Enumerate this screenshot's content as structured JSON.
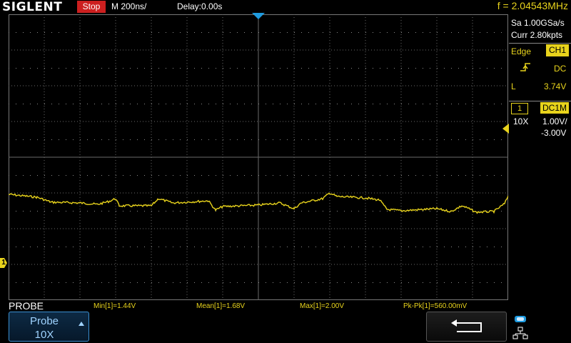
{
  "header": {
    "brand": "SIGLENT",
    "run_status": "Stop",
    "timebase": "M 200ns/",
    "delay": "Delay:0.00s",
    "frequency": "f = 2.04543MHz"
  },
  "acquisition": {
    "sample_rate": "Sa 1.00GSa/s",
    "current_points": "Curr 2.80kpts"
  },
  "trigger": {
    "type": "Edge",
    "source": "CH1",
    "coupling": "DC",
    "mode": "L",
    "level": "3.74V",
    "slope_icon": "rising-edge-icon"
  },
  "channel1": {
    "number": "1",
    "coupling": "DC1M",
    "probe": "10X",
    "scale": "1.00V/",
    "offset": "-3.00V",
    "marker_label": "1",
    "color": "#e8d31c"
  },
  "measurements": {
    "menu_title": "PROBE",
    "min": "Min[1]=1.44V",
    "mean": "Mean[1]=1.68V",
    "max": "Max[1]=2.00V",
    "pkpk": "Pk-Pk[1]=560.00mV"
  },
  "softkeys": {
    "probe_label": "Probe",
    "probe_value": "10X",
    "return_icon": "return-arrow-icon"
  },
  "colors": {
    "background": "#000000",
    "trace": "#e8d31c",
    "stop": "#cc1f1f",
    "accent_blue": "#3a8fd1"
  }
}
